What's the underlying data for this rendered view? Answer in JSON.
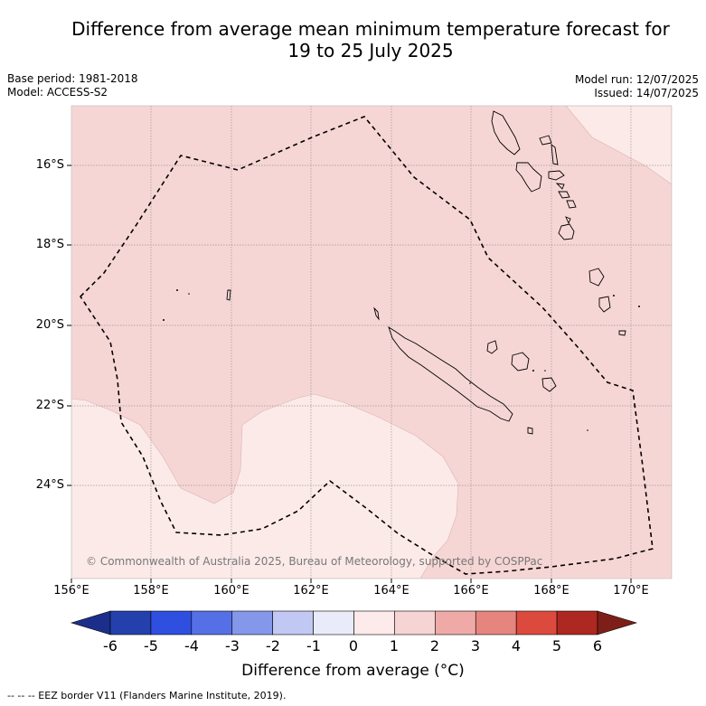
{
  "title_line1": "Difference from average mean minimum temperature forecast for",
  "title_line2": "19 to 25 July 2025",
  "base_period": "Base period: 1981-2018",
  "model": "Model: ACCESS-S2",
  "model_run": "Model run: 12/07/2025",
  "issued": "Issued: 14/07/2025",
  "lat_labels": [
    "16°S",
    "18°S",
    "20°S",
    "22°S",
    "24°S"
  ],
  "lon_labels": [
    "156°E",
    "158°E",
    "160°E",
    "162°E",
    "164°E",
    "166°E",
    "168°E",
    "170°E"
  ],
  "copyright": "© Commonwealth of Australia 2025, Bureau of Meteorology, supported by COSPPac",
  "colorbar": {
    "ticks": [
      "-6",
      "-5",
      "-4",
      "-3",
      "-2",
      "-1",
      "0",
      "1",
      "2",
      "3",
      "4",
      "5",
      "6"
    ],
    "label": "Difference from average (°C)",
    "colors": [
      "#2340ac",
      "#2f4fe0",
      "#5570e6",
      "#8597ea",
      "#c2c8f4",
      "#e9ebfa",
      "#fdeaea",
      "#f6d4d3",
      "#efaaa7",
      "#e6847e",
      "#dc4a3e",
      "#ad2820"
    ],
    "under_color": "#1b2f8a",
    "over_color": "#7d1f18"
  },
  "footnote": "--  --  -- EEZ border V11 (Flanders Marine Institute, 2019).",
  "field_colors": {
    "range_0_1": "#fceae9",
    "range_1_2": "#f6d6d5"
  }
}
